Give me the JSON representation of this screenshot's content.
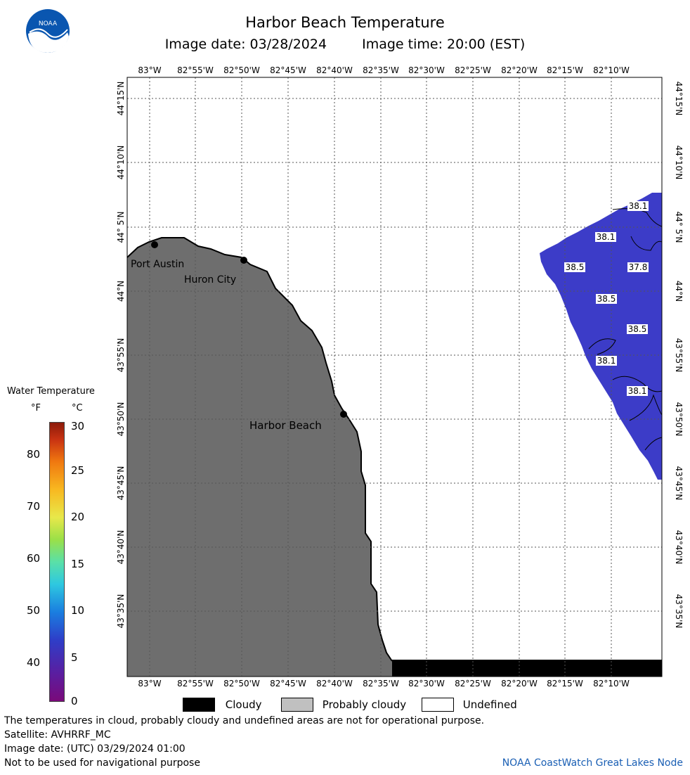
{
  "title": "Harbor Beach Temperature",
  "image_date_label": "Image date: 03/28/2024",
  "image_time_label": "Image time: 20:00 (EST)",
  "logo_text": "NOAA",
  "lon_labels": [
    "83°W",
    "82°55'W",
    "82°50'W",
    "82°45'W",
    "82°40'W",
    "82°35'W",
    "82°30'W",
    "82°25'W",
    "82°20'W",
    "82°15'W",
    "82°10'W"
  ],
  "lat_labels": [
    "44°15'N",
    "44°10'N",
    "44° 5'N",
    "44°N",
    "43°55'N",
    "43°50'N",
    "43°45'N",
    "43°40'N",
    "43°35'N"
  ],
  "places": [
    {
      "name": "Port Austin"
    },
    {
      "name": "Huron City"
    },
    {
      "name": "Harbor Beach"
    }
  ],
  "water_temp_labels": [
    "38.1",
    "38.1",
    "38.5",
    "37.8",
    "38.5",
    "38.5",
    "38.1",
    "38.1"
  ],
  "legend": {
    "title": "Water Temperature",
    "unit_f": "°F",
    "unit_c": "°C",
    "fahrenheit": [
      "80",
      "70",
      "60",
      "50",
      "40"
    ],
    "celsius": [
      "30",
      "25",
      "20",
      "15",
      "10",
      "5",
      "0"
    ]
  },
  "categories": {
    "cloudy": "Cloudy",
    "probably_cloudy": "Probably cloudy",
    "undefined": "Undefined"
  },
  "colors": {
    "land": "#6e6e6e",
    "water": "#3c3cc8",
    "cloudy": "#000000",
    "probably_cloudy": "#c0c0c0",
    "credit": "#1a5fb4"
  },
  "notes": {
    "operational": "The temperatures in cloud, probably cloudy and undefined areas are not for operational purpose.",
    "satellite": "Satellite: AVHRRF_MC",
    "utc_date": "Image date: (UTC) 03/29/2024  01:00",
    "navigation": "Not to be used for navigational purpose"
  },
  "credit": "NOAA CoastWatch Great Lakes Node"
}
